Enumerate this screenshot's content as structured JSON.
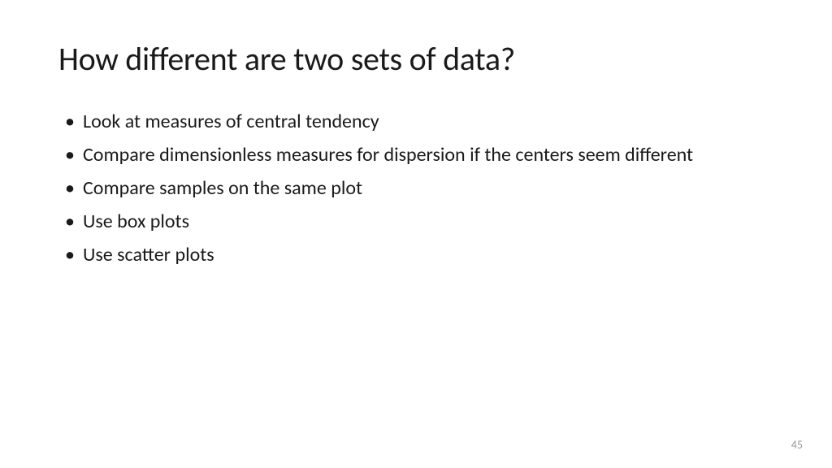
{
  "slide": {
    "title": "How different are two sets of data?",
    "bullets": [
      "Look at measures of central tendency",
      "Compare dimensionless measures for dispersion if the centers seem different",
      "Compare samples on the same plot",
      "Use box plots",
      "Use scatter plots"
    ],
    "page_number": "45"
  },
  "style": {
    "background_color": "#ffffff",
    "title_color": "#1a1a1a",
    "title_fontsize": 40,
    "title_fontweight": 400,
    "body_color": "#1a1a1a",
    "body_fontsize": 24,
    "body_fontweight": 400,
    "page_number_color": "#999999",
    "page_number_fontsize": 14,
    "font_family": "Segoe UI, Calibri, Helvetica Neue, Arial, sans-serif"
  }
}
